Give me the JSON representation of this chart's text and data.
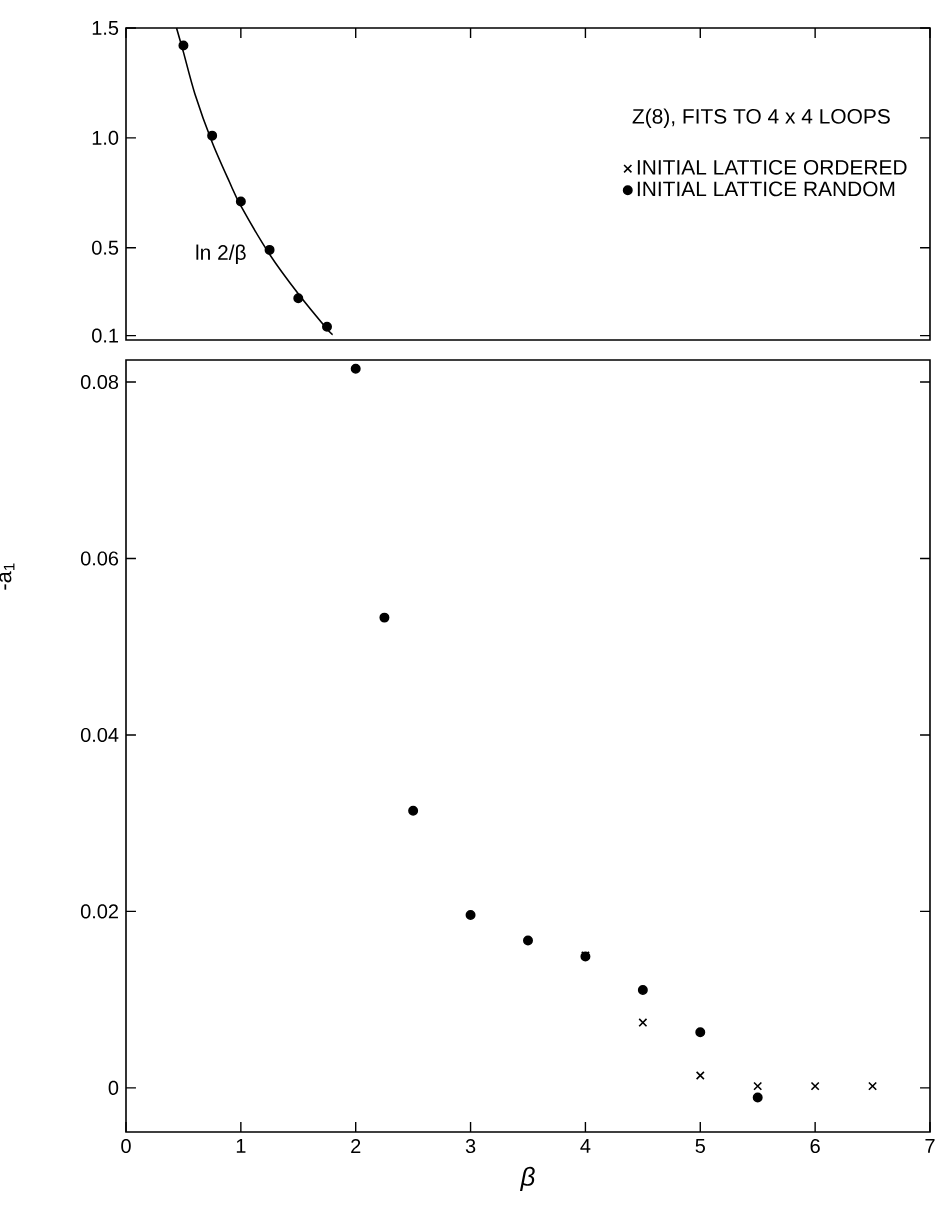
{
  "chart_data": [
    {
      "type": "scatter",
      "xlim": [
        0,
        7
      ],
      "xticks": [
        0,
        1,
        2,
        3,
        4,
        5,
        6,
        7
      ],
      "ylim": [
        0.08,
        1.5
      ],
      "yticks": [
        0.1,
        0.5,
        {
          "value": 1,
          "label": "1.0"
        },
        {
          "value": 1.5,
          "label": "1.5"
        }
      ],
      "tick_labels": "y",
      "grid": false,
      "series": [
        {
          "color": "#000000",
          "marker": "circle",
          "x": [
            0.5,
            0.75,
            1.0,
            1.25,
            1.5,
            1.75
          ],
          "values": [
            1.42,
            1.01,
            0.71,
            0.49,
            0.27,
            0.14
          ]
        },
        {
          "name": "ln 2/β",
          "type": "line",
          "color": "#000000",
          "marker": "none",
          "line_style": "solid",
          "x": [
            0.44,
            0.5,
            0.6,
            0.75,
            0.9,
            1.0,
            1.25,
            1.5,
            1.75,
            1.8
          ],
          "values": [
            1.5,
            1.39,
            1.2,
            0.98,
            0.8,
            0.69,
            0.47,
            0.29,
            0.13,
            0.105
          ]
        }
      ]
    },
    {
      "type": "scatter",
      "xlabel": "β",
      "ylabel": "-a$_{1}$",
      "xlim": [
        0,
        7
      ],
      "xticks": [
        0,
        1,
        2,
        3,
        4,
        5,
        6,
        7
      ],
      "ylim": [
        -0.005,
        0.0825
      ],
      "yticks": [
        0,
        0.02,
        0.04,
        0.06,
        0.08
      ],
      "grid": false,
      "legend": "top right",
      "annotations": [
        "Z(8), FITS TO 4 x 4 LOOPS"
      ],
      "series": [
        {
          "name": "INITIAL LATTICE ORDERED",
          "color": "#000000",
          "marker": "cross",
          "x": [
            4,
            4.5,
            5,
            5.5,
            6,
            6.5
          ],
          "values": [
            0.015,
            0.0074,
            0.0014,
            0.0002,
            0.0002,
            0.0002
          ]
        },
        {
          "name": "INITIAL LATTICE RANDOM",
          "color": "#000000",
          "marker": "circle",
          "x": [
            2,
            2.25,
            2.5,
            3,
            3.5,
            4,
            4.5,
            5,
            5.5
          ],
          "values": [
            0.0815,
            0.0533,
            0.0314,
            0.0196,
            0.0167,
            0.0149,
            0.0111,
            0.0063,
            -0.0011
          ]
        }
      ]
    }
  ]
}
